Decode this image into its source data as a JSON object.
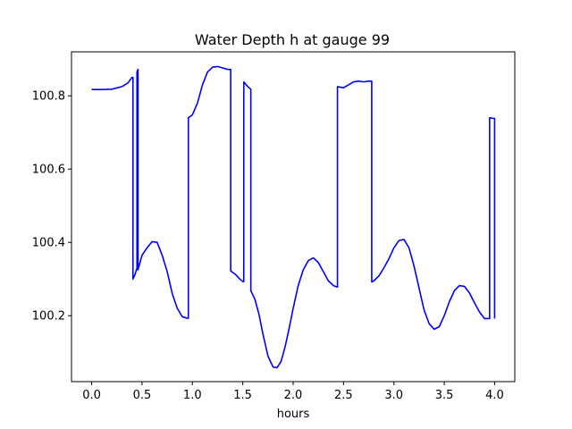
{
  "chart_data": {
    "type": "line",
    "title": "Water Depth h at gauge 99",
    "xlabel": "hours",
    "ylabel": "",
    "xlim": [
      -0.2,
      4.2
    ],
    "ylim": [
      100.02,
      100.92
    ],
    "xticks": [
      0.0,
      0.5,
      1.0,
      1.5,
      2.0,
      2.5,
      3.0,
      3.5,
      4.0
    ],
    "xtick_labels": [
      "0.0",
      "0.5",
      "1.0",
      "1.5",
      "2.0",
      "2.5",
      "3.0",
      "3.5",
      "4.0"
    ],
    "yticks": [
      100.2,
      100.4,
      100.6,
      100.8
    ],
    "ytick_labels": [
      "100.2",
      "100.4",
      "100.6",
      "100.8"
    ],
    "grid": false,
    "legend": "none",
    "series": [
      {
        "color": "#0000ff",
        "x": [
          0.0,
          0.1,
          0.2,
          0.3,
          0.36,
          0.4,
          0.41,
          0.41,
          0.43,
          0.45,
          0.45,
          0.46,
          0.46,
          0.47,
          0.5,
          0.55,
          0.6,
          0.65,
          0.7,
          0.75,
          0.8,
          0.85,
          0.9,
          0.95,
          0.96,
          0.96,
          1.0,
          1.05,
          1.1,
          1.15,
          1.2,
          1.25,
          1.3,
          1.35,
          1.38,
          1.38,
          1.43,
          1.47,
          1.5,
          1.51,
          1.51,
          1.55,
          1.58,
          1.58,
          1.62,
          1.66,
          1.7,
          1.75,
          1.8,
          1.84,
          1.88,
          1.92,
          1.96,
          2.0,
          2.05,
          2.1,
          2.15,
          2.2,
          2.25,
          2.3,
          2.35,
          2.4,
          2.44,
          2.44,
          2.5,
          2.55,
          2.6,
          2.65,
          2.7,
          2.75,
          2.78,
          2.78,
          2.8,
          2.85,
          2.9,
          2.95,
          3.0,
          3.05,
          3.1,
          3.15,
          3.2,
          3.25,
          3.3,
          3.35,
          3.4,
          3.45,
          3.5,
          3.55,
          3.6,
          3.65,
          3.7,
          3.75,
          3.8,
          3.85,
          3.9,
          3.95,
          3.95,
          4.0,
          4.0
        ],
        "y": [
          100.817,
          100.817,
          100.818,
          100.825,
          100.835,
          100.85,
          100.85,
          100.3,
          100.312,
          100.33,
          100.865,
          100.872,
          100.325,
          100.335,
          100.365,
          100.385,
          100.402,
          100.4,
          100.365,
          100.32,
          100.26,
          100.22,
          100.197,
          100.193,
          100.193,
          100.74,
          100.748,
          100.78,
          100.83,
          100.865,
          100.878,
          100.88,
          100.876,
          100.872,
          100.872,
          100.322,
          100.312,
          100.3,
          100.293,
          100.293,
          100.838,
          100.825,
          100.818,
          100.268,
          100.245,
          100.205,
          100.15,
          100.09,
          100.06,
          100.058,
          100.075,
          100.115,
          100.165,
          100.22,
          100.282,
          100.325,
          100.35,
          100.358,
          100.345,
          100.32,
          100.295,
          100.282,
          100.278,
          100.825,
          100.822,
          100.83,
          100.838,
          100.84,
          100.838,
          100.84,
          100.84,
          100.292,
          100.295,
          100.308,
          100.33,
          100.355,
          100.385,
          100.405,
          100.408,
          100.385,
          100.335,
          100.275,
          100.215,
          100.178,
          100.163,
          100.17,
          100.2,
          100.238,
          100.268,
          100.282,
          100.28,
          100.262,
          100.235,
          100.21,
          100.192,
          100.192,
          100.74,
          100.738,
          100.192
        ]
      }
    ]
  }
}
